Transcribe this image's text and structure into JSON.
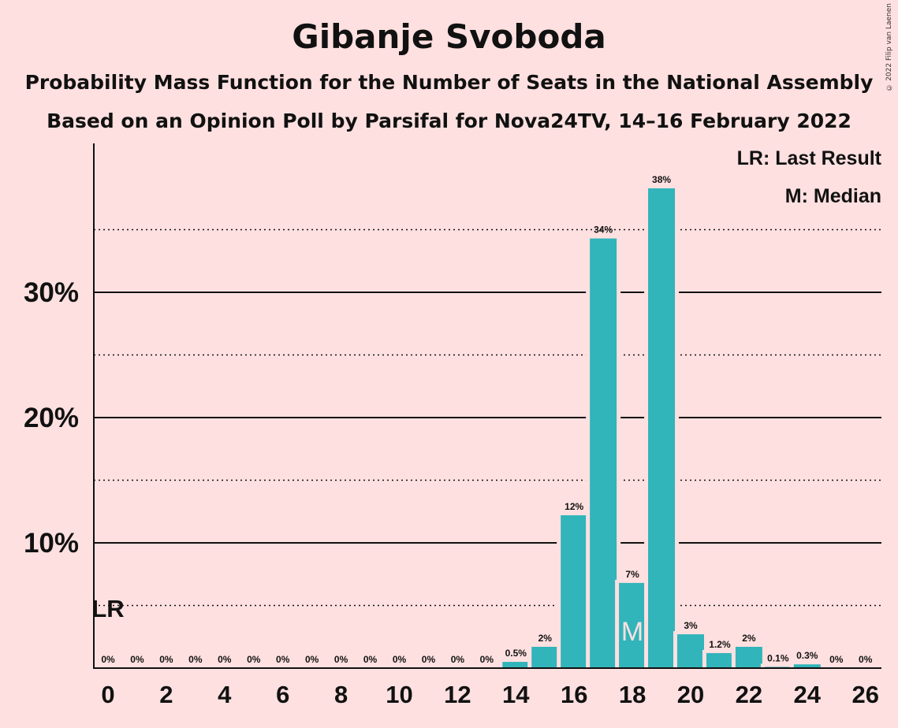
{
  "title": "Gibanje Svoboda",
  "subtitle1": "Probability Mass Function for the Number of Seats in the National Assembly",
  "subtitle2": "Based on an Opinion Poll by Parsifal for Nova24TV, 14–16 February 2022",
  "copyright": "© 2022 Filip van Laenen",
  "legend": {
    "last_result": "LR: Last Result",
    "median": "M: Median"
  },
  "colors": {
    "background": "#FFE0E0",
    "bar": "#31B4BA",
    "text": "#111111"
  },
  "chart_data": {
    "type": "bar",
    "x": [
      0,
      1,
      2,
      3,
      4,
      5,
      6,
      7,
      8,
      9,
      10,
      11,
      12,
      13,
      14,
      15,
      16,
      17,
      18,
      19,
      20,
      21,
      22,
      23,
      24,
      25,
      26
    ],
    "values": [
      0,
      0,
      0,
      0,
      0,
      0,
      0,
      0,
      0,
      0,
      0,
      0,
      0,
      0,
      0.5,
      1.7,
      12.2,
      34.3,
      6.8,
      38.3,
      2.7,
      1.2,
      1.7,
      0.1,
      0.3,
      0,
      0
    ],
    "data_labels": [
      "0%",
      "0%",
      "0%",
      "0%",
      "0%",
      "0%",
      "0%",
      "0%",
      "0%",
      "0%",
      "0%",
      "0%",
      "0%",
      "0%",
      "0.5%",
      "2%",
      "12%",
      "34%",
      "7%",
      "38%",
      "3%",
      "1.2%",
      "2%",
      "0.1%",
      "0.3%",
      "0%",
      "0%"
    ],
    "x_tick_labels": [
      "0",
      "2",
      "4",
      "6",
      "8",
      "10",
      "12",
      "14",
      "16",
      "18",
      "20",
      "22",
      "24",
      "26"
    ],
    "y_tick_labels": [
      "10%",
      "20%",
      "30%"
    ],
    "y_ticks": [
      10,
      20,
      30
    ],
    "y_minor_ticks": [
      5,
      15,
      25,
      35
    ],
    "ylim": [
      0,
      42
    ],
    "last_result": {
      "seats": 0,
      "label": "LR"
    },
    "median": {
      "seats": 18,
      "label": "M"
    },
    "legend_position": "top-right"
  }
}
